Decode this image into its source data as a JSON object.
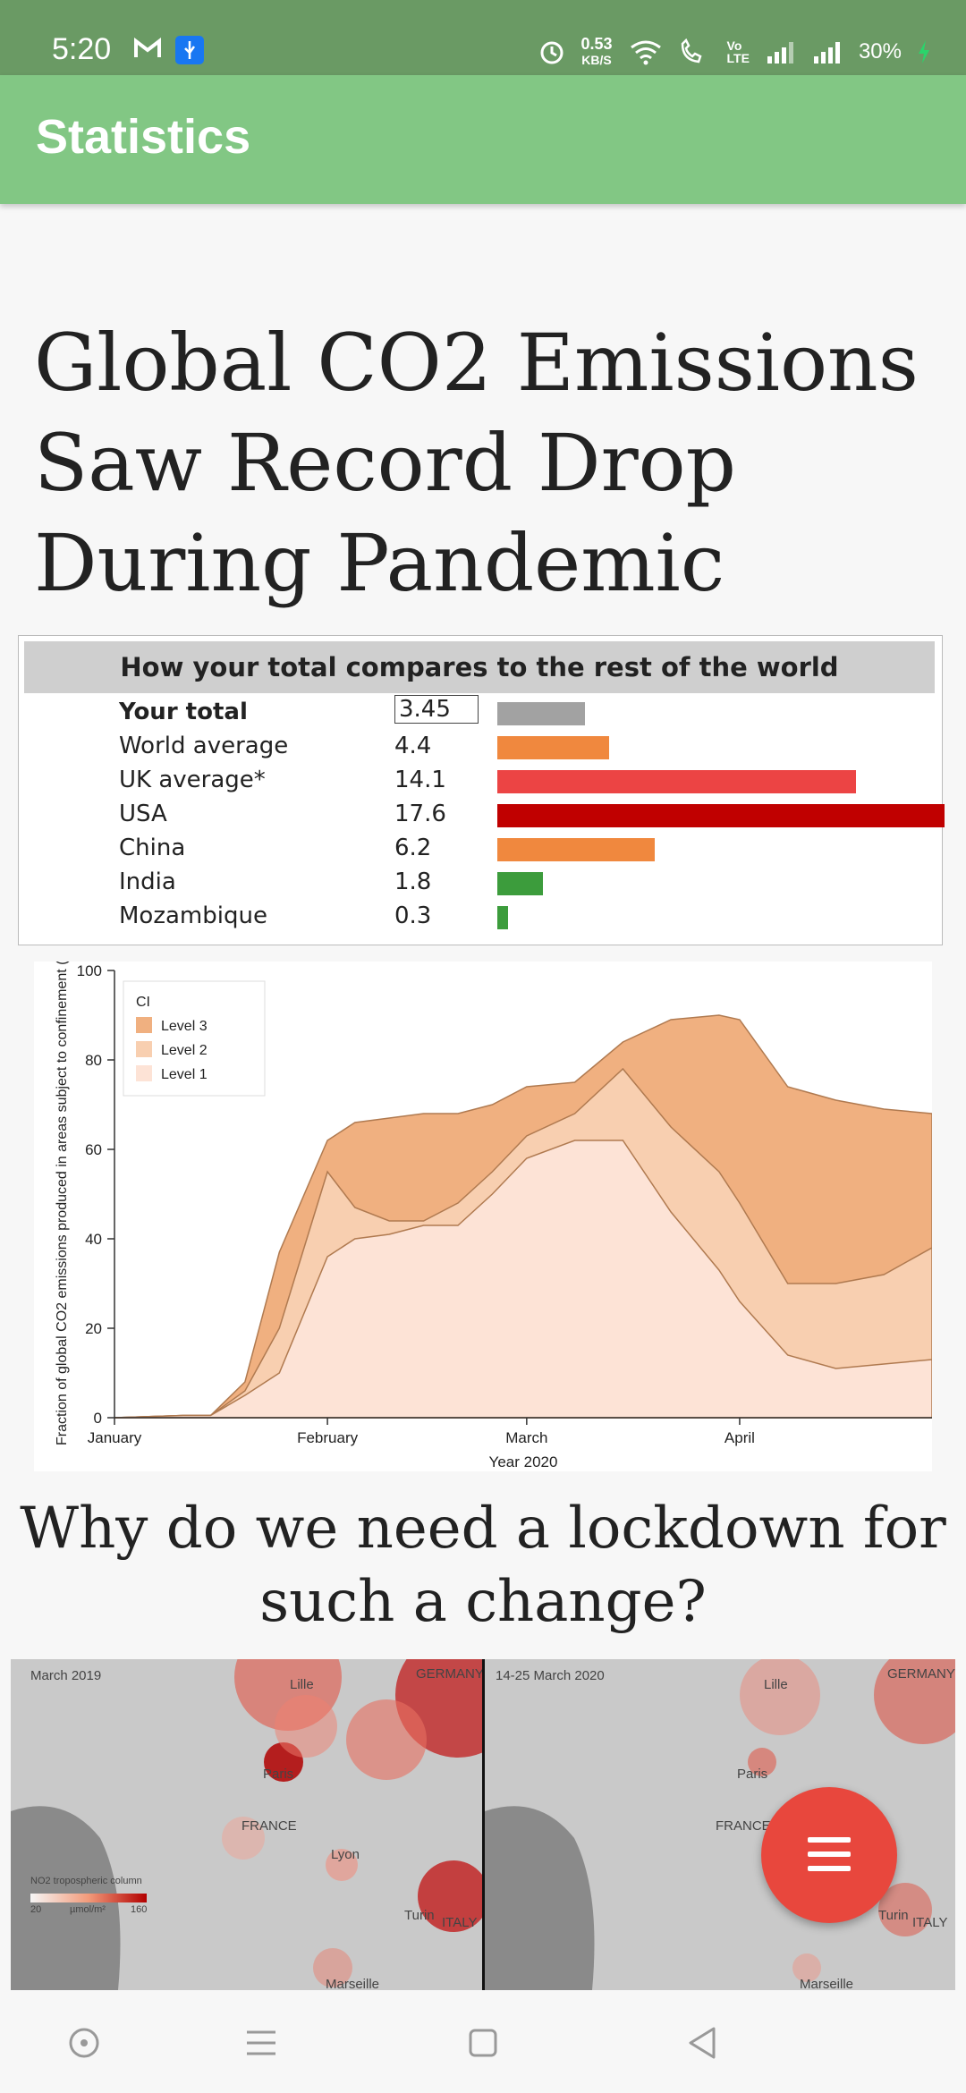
{
  "status_bar": {
    "time": "5:20",
    "net_speed_value": "0.53",
    "net_speed_unit": "KB/S",
    "volte": "Vo\nLTE",
    "battery": "30%"
  },
  "app_bar": {
    "title": "Statistics"
  },
  "article": {
    "headline": "Global CO2 Emissions Saw Record Drop During Pandemic",
    "subheadline": "Why do we need a lockdown for such a change?"
  },
  "comparison": {
    "heading": "How your total compares to the rest of the world",
    "rows": [
      {
        "label": "Your total",
        "value": "3.45",
        "color": "#a2a2a2",
        "bold": true,
        "boxed": true
      },
      {
        "label": "World average",
        "value": "4.4",
        "color": "#f0883e"
      },
      {
        "label": "UK average*",
        "value": "14.1",
        "color": "#ec4444"
      },
      {
        "label": "USA",
        "value": "17.6",
        "color": "#c00000"
      },
      {
        "label": "China",
        "value": "6.2",
        "color": "#f0883e"
      },
      {
        "label": "India",
        "value": "1.8",
        "color": "#3c9c3c"
      },
      {
        "label": "Mozambique",
        "value": "0.3",
        "color": "#3c9c3c"
      }
    ]
  },
  "chart_data": {
    "type": "area",
    "title": "",
    "xlabel": "Year 2020",
    "ylabel": "Fraction of global CO2 emissions produced in areas subject to confinement (%)",
    "ylim": [
      0,
      100
    ],
    "x_ticks": [
      "January",
      "February",
      "March",
      "April"
    ],
    "y_ticks": [
      0,
      20,
      40,
      60,
      80,
      100
    ],
    "legend_title": "CI",
    "legend_position": "top-left",
    "x": [
      "2020-01-01",
      "2020-01-11",
      "2020-01-15",
      "2020-01-20",
      "2020-01-25",
      "2020-02-01",
      "2020-02-05",
      "2020-02-10",
      "2020-02-15",
      "2020-02-20",
      "2020-02-25",
      "2020-03-01",
      "2020-03-08",
      "2020-03-15",
      "2020-03-22",
      "2020-03-29",
      "2020-04-01",
      "2020-04-08",
      "2020-04-15",
      "2020-04-22",
      "2020-04-29"
    ],
    "series": [
      {
        "name": "Level 3",
        "color": "#f0b080",
        "values": [
          0,
          0.5,
          0.5,
          8,
          37,
          62,
          66,
          67,
          68,
          68,
          70,
          74,
          75,
          84,
          89,
          90,
          89,
          74,
          71,
          69,
          68
        ]
      },
      {
        "name": "Level 2",
        "color": "#f8cfb0",
        "values": [
          0,
          0.5,
          0.5,
          6,
          20,
          55,
          47,
          44,
          44,
          48,
          55,
          63,
          68,
          78,
          65,
          55,
          48,
          30,
          30,
          32,
          38
        ]
      },
      {
        "name": "Level 1",
        "color": "#fde3d6",
        "values": [
          0,
          0.5,
          0.5,
          5,
          10,
          36,
          40,
          41,
          43,
          43,
          50,
          58,
          62,
          62,
          46,
          33,
          26,
          14,
          11,
          12,
          13
        ]
      }
    ]
  },
  "maps": {
    "left_label": "March 2019",
    "right_label": "14-25 March 2020",
    "place_labels": [
      "GERMANY",
      "Lille",
      "Paris",
      "FRANCE",
      "Lyon",
      "Turin",
      "ITALY",
      "Marseille"
    ],
    "legend_title": "NO2 tropospheric column",
    "legend_min": "20",
    "legend_unit": "µmol/m²",
    "legend_max": "160"
  }
}
